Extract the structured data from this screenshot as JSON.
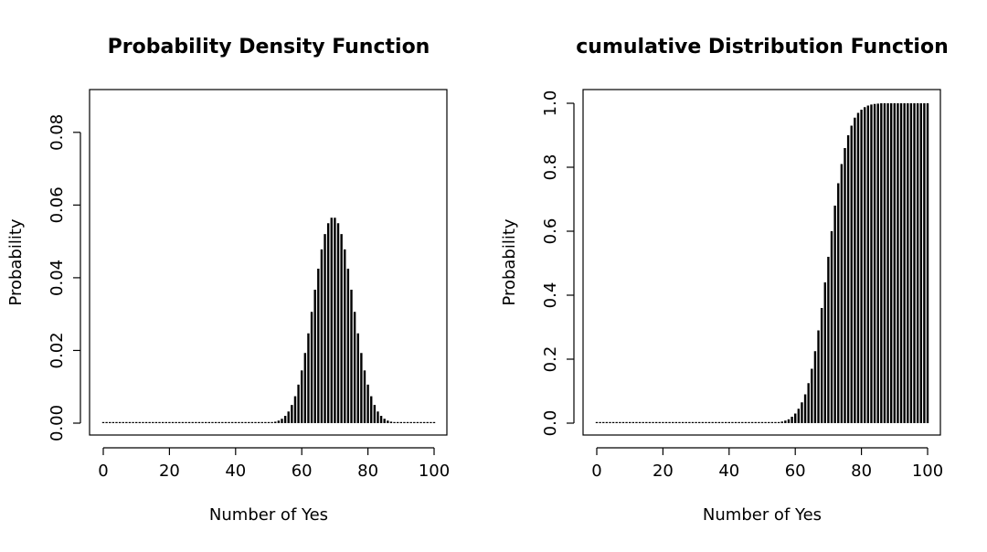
{
  "chart_data": [
    {
      "type": "bar",
      "title": "Probability Density Function",
      "xlabel": "Number of Yes",
      "ylabel": "Probability",
      "xlim": [
        0,
        100
      ],
      "ylim": [
        0,
        0.088
      ],
      "xticks": [
        "0",
        "20",
        "40",
        "60",
        "80",
        "100"
      ],
      "yticks": [
        "0.00",
        "0.02",
        "0.04",
        "0.06",
        "0.08"
      ],
      "grid": false,
      "legend": "none",
      "color": "#000000",
      "x": [
        0,
        1,
        2,
        3,
        4,
        5,
        6,
        7,
        8,
        9,
        10,
        11,
        12,
        13,
        14,
        15,
        16,
        17,
        18,
        19,
        20,
        21,
        22,
        23,
        24,
        25,
        26,
        27,
        28,
        29,
        30,
        31,
        32,
        33,
        34,
        35,
        36,
        37,
        38,
        39,
        40,
        41,
        42,
        43,
        44,
        45,
        46,
        47,
        48,
        49,
        50,
        51,
        52,
        53,
        54,
        55,
        56,
        57,
        58,
        59,
        60,
        61,
        62,
        63,
        64,
        65,
        66,
        67,
        68,
        69,
        70,
        71,
        72,
        73,
        74,
        75,
        76,
        77,
        78,
        79,
        80,
        81,
        82,
        83,
        84,
        85,
        86,
        87,
        88,
        89,
        90,
        91,
        92,
        93,
        94,
        95,
        96,
        97,
        98,
        99,
        100
      ],
      "values": [
        0,
        0,
        0,
        0,
        0,
        0,
        0,
        0,
        0,
        0,
        0,
        0,
        0,
        0,
        0,
        0,
        0,
        0,
        0,
        0,
        0,
        0,
        0,
        0,
        0,
        0,
        0,
        0,
        0,
        0,
        0,
        0,
        0,
        0,
        0,
        0,
        0,
        0,
        0,
        0,
        0,
        0,
        0,
        0,
        0,
        0,
        0,
        0,
        0,
        0.0001,
        0.0001,
        0.0002,
        0.0004,
        0.0007,
        0.0012,
        0.002,
        0.0032,
        0.005,
        0.0074,
        0.0106,
        0.0145,
        0.0193,
        0.0247,
        0.0306,
        0.0367,
        0.0425,
        0.0478,
        0.052,
        0.055,
        0.0565,
        0.0565,
        0.055,
        0.052,
        0.0478,
        0.0425,
        0.0367,
        0.0306,
        0.0247,
        0.0193,
        0.0145,
        0.0106,
        0.0074,
        0.005,
        0.0032,
        0.002,
        0.0012,
        0.0007,
        0.0004,
        0.0002,
        0.0001,
        0.0001,
        0,
        0,
        0,
        0,
        0,
        0,
        0,
        0,
        0,
        0
      ]
    },
    {
      "type": "bar",
      "title": "cumulative Distribution Function",
      "xlabel": "Number of Yes",
      "ylabel": "Probability",
      "xlim": [
        0,
        100
      ],
      "ylim": [
        0,
        1.0
      ],
      "xticks": [
        "0",
        "20",
        "40",
        "60",
        "80",
        "100"
      ],
      "yticks": [
        "0.0",
        "0.2",
        "0.4",
        "0.6",
        "0.8",
        "1.0"
      ],
      "grid": false,
      "legend": "none",
      "color": "#000000",
      "x": [
        0,
        1,
        2,
        3,
        4,
        5,
        6,
        7,
        8,
        9,
        10,
        11,
        12,
        13,
        14,
        15,
        16,
        17,
        18,
        19,
        20,
        21,
        22,
        23,
        24,
        25,
        26,
        27,
        28,
        29,
        30,
        31,
        32,
        33,
        34,
        35,
        36,
        37,
        38,
        39,
        40,
        41,
        42,
        43,
        44,
        45,
        46,
        47,
        48,
        49,
        50,
        51,
        52,
        53,
        54,
        55,
        56,
        57,
        58,
        59,
        60,
        61,
        62,
        63,
        64,
        65,
        66,
        67,
        68,
        69,
        70,
        71,
        72,
        73,
        74,
        75,
        76,
        77,
        78,
        79,
        80,
        81,
        82,
        83,
        84,
        85,
        86,
        87,
        88,
        89,
        90,
        91,
        92,
        93,
        94,
        95,
        96,
        97,
        98,
        99,
        100
      ],
      "values": [
        0,
        0,
        0,
        0,
        0,
        0,
        0,
        0,
        0,
        0,
        0,
        0,
        0,
        0,
        0,
        0,
        0,
        0,
        0,
        0,
        0,
        0,
        0,
        0,
        0,
        0,
        0,
        0,
        0,
        0,
        0,
        0,
        0,
        0,
        0,
        0,
        0,
        0,
        0,
        0,
        0,
        0,
        0,
        0,
        0,
        0,
        0,
        0,
        0,
        0,
        0,
        0,
        0,
        0.001,
        0.002,
        0.003,
        0.005,
        0.008,
        0.012,
        0.02,
        0.03,
        0.045,
        0.065,
        0.09,
        0.125,
        0.17,
        0.225,
        0.29,
        0.36,
        0.44,
        0.52,
        0.6,
        0.68,
        0.75,
        0.81,
        0.86,
        0.9,
        0.93,
        0.955,
        0.97,
        0.98,
        0.988,
        0.993,
        0.996,
        0.998,
        0.999,
        1,
        1,
        1,
        1,
        1,
        1,
        1,
        1,
        1,
        1,
        1,
        1,
        1,
        1,
        1
      ]
    }
  ]
}
